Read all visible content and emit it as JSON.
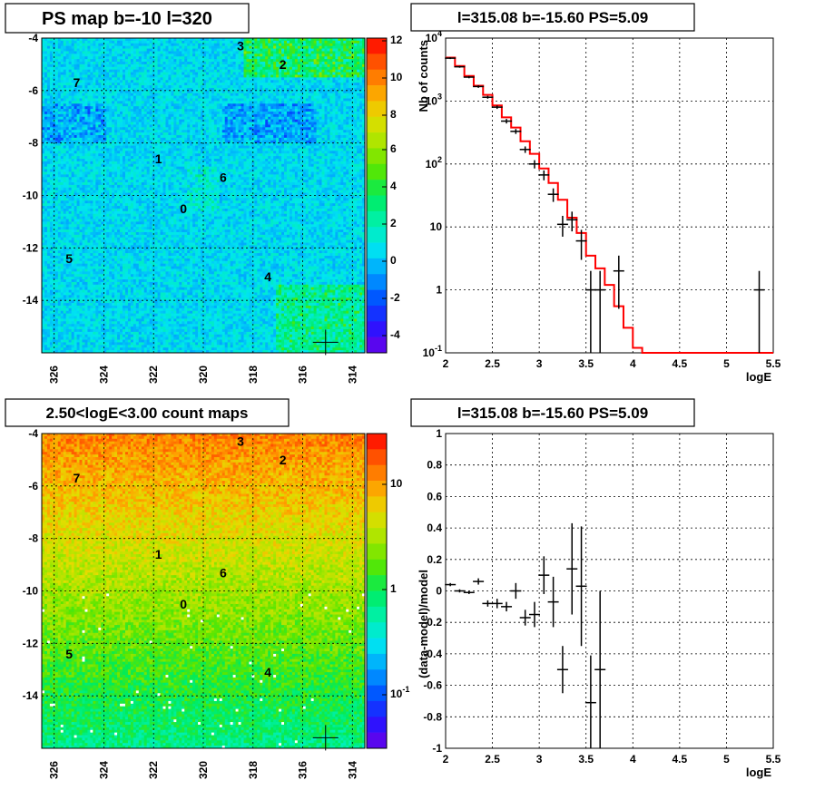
{
  "chart_data": [
    {
      "type": "heatmap",
      "title": "PS map b=-10 l=320",
      "x_ticks": [
        "326",
        "324",
        "322",
        "320",
        "318",
        "316",
        "314"
      ],
      "y_ticks": [
        "-4",
        "-6",
        "-8",
        "-10",
        "-12",
        "-14"
      ],
      "xlim": [
        326.5,
        313.5
      ],
      "ylim": [
        -16,
        -4
      ],
      "colorbar_ticks": [
        "12",
        "10",
        "8",
        "6",
        "4",
        "2",
        "0",
        "-2",
        "-4"
      ],
      "colorbar_range": [
        -5,
        12
      ],
      "source_labels": [
        {
          "id": "0",
          "l": 320.8,
          "b": -10.5
        },
        {
          "id": "1",
          "l": 321.8,
          "b": -8.6
        },
        {
          "id": "2",
          "l": 316.8,
          "b": -5.0
        },
        {
          "id": "3",
          "l": 318.5,
          "b": -4.3
        },
        {
          "id": "4",
          "l": 317.4,
          "b": -13.1
        },
        {
          "id": "5",
          "l": 325.4,
          "b": -12.4
        },
        {
          "id": "6",
          "l": 319.2,
          "b": -9.3
        },
        {
          "id": "7",
          "l": 325.1,
          "b": -5.7
        }
      ],
      "marker": {
        "l": 315.08,
        "b": -15.6
      }
    },
    {
      "type": "line",
      "title": "l=315.08 b=-15.60 PS=5.09",
      "xlabel": "logE",
      "ylabel": "Nb of counts",
      "xlim": [
        2,
        5.5
      ],
      "ylim": [
        0.1,
        10000
      ],
      "yscale": "log",
      "grid": true,
      "x_ticks": [
        "2",
        "2.5",
        "3",
        "3.5",
        "4",
        "4.5",
        "5",
        "5.5"
      ],
      "y_ticks": [
        "10^-1",
        "1",
        "10",
        "10^2",
        "10^3",
        "10^4"
      ],
      "points": [
        {
          "x": 2.05,
          "y": 4800,
          "err": 150
        },
        {
          "x": 2.15,
          "y": 3500,
          "err": 120
        },
        {
          "x": 2.25,
          "y": 2400,
          "err": 100
        },
        {
          "x": 2.35,
          "y": 1700,
          "err": 80
        },
        {
          "x": 2.45,
          "y": 1150,
          "err": 60
        },
        {
          "x": 2.55,
          "y": 800,
          "err": 50
        },
        {
          "x": 2.65,
          "y": 480,
          "err": 40
        },
        {
          "x": 2.75,
          "y": 330,
          "err": 30
        },
        {
          "x": 2.85,
          "y": 170,
          "err": 20
        },
        {
          "x": 2.95,
          "y": 100,
          "err": 15
        },
        {
          "x": 3.05,
          "y": 67,
          "err": 12
        },
        {
          "x": 3.15,
          "y": 33,
          "err": 8
        },
        {
          "x": 3.25,
          "y": 11,
          "err": 4
        },
        {
          "x": 3.35,
          "y": 13,
          "err": 4.5
        },
        {
          "x": 3.45,
          "y": 6,
          "err": 3
        },
        {
          "x": 3.55,
          "y": 1,
          "err": 1
        },
        {
          "x": 3.65,
          "y": 1,
          "err": 1
        },
        {
          "x": 3.85,
          "y": 2,
          "err": 1.5
        },
        {
          "x": 5.35,
          "y": 1,
          "err": 1
        }
      ],
      "model": {
        "name": "model",
        "color": "#ff0000",
        "bin_edges": [
          2.0,
          2.1,
          2.2,
          2.3,
          2.4,
          2.5,
          2.6,
          2.7,
          2.8,
          2.9,
          3.0,
          3.1,
          3.2,
          3.3,
          3.4,
          3.5,
          3.6,
          3.7,
          3.8,
          3.9,
          4.0,
          4.1,
          5.5
        ],
        "values": [
          4900,
          3600,
          2500,
          1750,
          1250,
          850,
          550,
          380,
          230,
          145,
          85,
          50,
          27,
          14,
          8,
          3.5,
          2.2,
          1.2,
          0.55,
          0.25,
          0.12,
          0.1
        ]
      }
    },
    {
      "type": "heatmap",
      "title": "2.50<logE<3.00 count maps",
      "x_ticks": [
        "326",
        "324",
        "322",
        "320",
        "318",
        "316",
        "314"
      ],
      "y_ticks": [
        "-4",
        "-6",
        "-8",
        "-10",
        "-12",
        "-14"
      ],
      "xlim": [
        326.5,
        313.5
      ],
      "ylim": [
        -16,
        -4
      ],
      "colorbar_ticks": [
        "10",
        "1",
        "10^-1"
      ],
      "colorbar_scale": "log",
      "source_labels": [
        {
          "id": "0",
          "l": 320.8,
          "b": -10.5
        },
        {
          "id": "1",
          "l": 321.8,
          "b": -8.6
        },
        {
          "id": "2",
          "l": 316.8,
          "b": -5.0
        },
        {
          "id": "3",
          "l": 318.5,
          "b": -4.3
        },
        {
          "id": "4",
          "l": 317.4,
          "b": -13.1
        },
        {
          "id": "5",
          "l": 325.4,
          "b": -12.4
        },
        {
          "id": "6",
          "l": 319.2,
          "b": -9.3
        },
        {
          "id": "7",
          "l": 325.1,
          "b": -5.7
        }
      ],
      "marker": {
        "l": 315.08,
        "b": -15.6
      }
    },
    {
      "type": "scatter",
      "title": "l=315.08 b=-15.60 PS=5.09",
      "xlabel": "logE",
      "ylabel": "(data-model)/model",
      "xlim": [
        2,
        5.5
      ],
      "ylim": [
        -1,
        1
      ],
      "grid": true,
      "x_ticks": [
        "2",
        "2.5",
        "3",
        "3.5",
        "4",
        "4.5",
        "5",
        "5.5"
      ],
      "y_ticks": [
        "1",
        "0.8",
        "0.6",
        "0.4",
        "0.2",
        "0",
        "-0.2",
        "-0.4",
        "-0.6",
        "-0.8",
        "-1"
      ],
      "points": [
        {
          "x": 2.05,
          "y": 0.04,
          "err": 0.01
        },
        {
          "x": 2.15,
          "y": 0.0,
          "err": 0.01
        },
        {
          "x": 2.25,
          "y": -0.01,
          "err": 0.01
        },
        {
          "x": 2.35,
          "y": 0.06,
          "err": 0.02
        },
        {
          "x": 2.45,
          "y": -0.08,
          "err": 0.02
        },
        {
          "x": 2.55,
          "y": -0.08,
          "err": 0.03
        },
        {
          "x": 2.65,
          "y": -0.1,
          "err": 0.03
        },
        {
          "x": 2.75,
          "y": 0.0,
          "err": 0.05
        },
        {
          "x": 2.85,
          "y": -0.17,
          "err": 0.05
        },
        {
          "x": 2.95,
          "y": -0.15,
          "err": 0.08
        },
        {
          "x": 3.05,
          "y": 0.1,
          "err": 0.12
        },
        {
          "x": 3.15,
          "y": -0.07,
          "err": 0.16
        },
        {
          "x": 3.25,
          "y": -0.5,
          "err": 0.15
        },
        {
          "x": 3.35,
          "y": 0.14,
          "err": 0.29
        },
        {
          "x": 3.45,
          "y": 0.03,
          "err": 0.38
        },
        {
          "x": 3.55,
          "y": -0.71,
          "err": 0.3
        },
        {
          "x": 3.65,
          "y": -0.5,
          "err": 0.5
        }
      ]
    }
  ]
}
